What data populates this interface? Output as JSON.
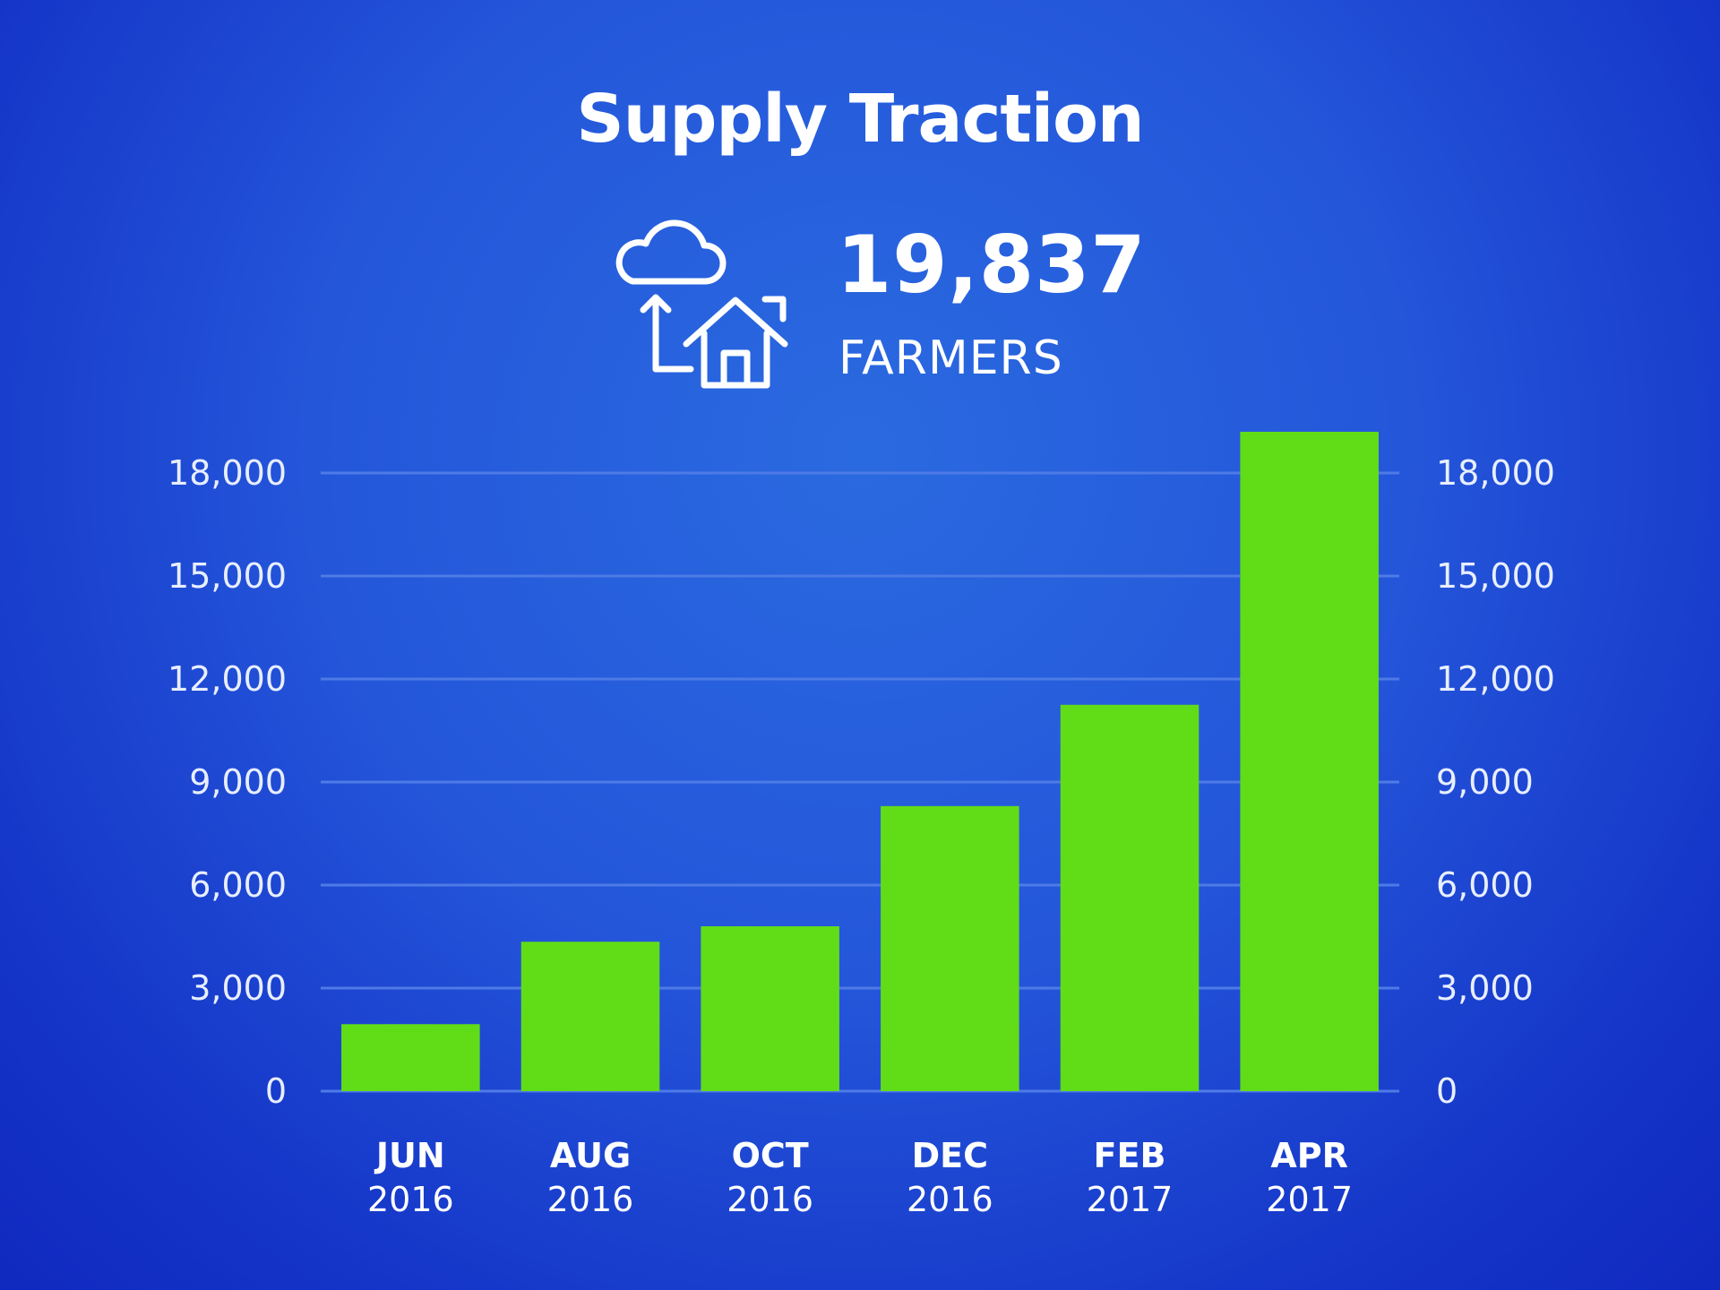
{
  "header": {
    "title": "Supply Traction",
    "metric_value": "19,837",
    "metric_label": "FARMERS",
    "metric_icon": "cloud-upload-house-icon"
  },
  "colors": {
    "background": "#1f4fd6",
    "bar": "#61dd18",
    "text": "#ffffff",
    "grid": "#4e7be6"
  },
  "chart_data": {
    "type": "bar",
    "categories": [
      {
        "month": "JUN",
        "year": "2016"
      },
      {
        "month": "AUG",
        "year": "2016"
      },
      {
        "month": "OCT",
        "year": "2016"
      },
      {
        "month": "DEC",
        "year": "2016"
      },
      {
        "month": "FEB",
        "year": "2017"
      },
      {
        "month": "APR",
        "year": "2017"
      }
    ],
    "values": [
      1950,
      4350,
      4800,
      8300,
      11250,
      19350
    ],
    "ylim": [
      0,
      18000
    ],
    "yticks": [
      "0",
      "3,000",
      "6,000",
      "9,000",
      "12,000",
      "15,000",
      "18,000"
    ],
    "y_axis_sides": "left-and-right",
    "grid": true,
    "title": "",
    "xlabel": "",
    "ylabel": ""
  }
}
